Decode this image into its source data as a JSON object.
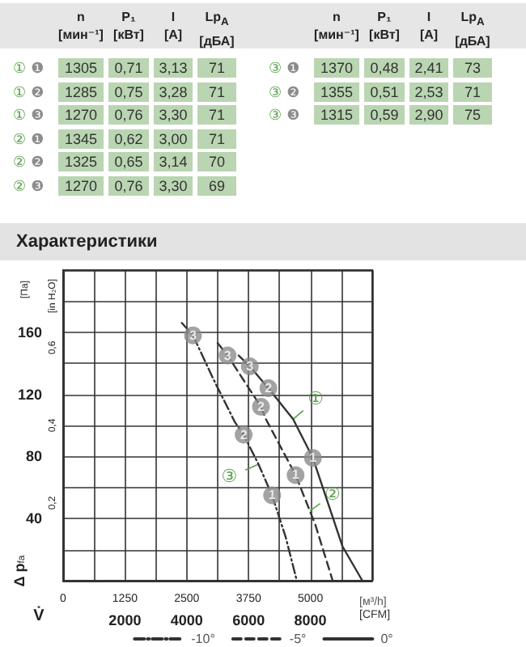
{
  "chart_data": [
    {
      "type": "other",
      "categories": [
        "n\n[мин⁻¹]",
        "P₁\n[кВт]",
        "I\n[A]",
        "Lp$_{A}$\n[дБА]"
      ],
      "color": "#b9d5b1",
      "series": [
        {
          "name": "① ❶",
          "values": [
            1305,
            0.71,
            3.13,
            71
          ],
          "value_labels": [
            "1305",
            "0,71",
            "3,13",
            "71"
          ]
        },
        {
          "name": "① ❷",
          "values": [
            1285,
            0.75,
            3.28,
            71
          ],
          "value_labels": [
            "1285",
            "0,75",
            "3,28",
            "71"
          ]
        },
        {
          "name": "① ❸",
          "values": [
            1270,
            0.76,
            3.3,
            71
          ],
          "value_labels": [
            "1270",
            "0,76",
            "3,30",
            "71"
          ]
        },
        {
          "name": "② ❶",
          "values": [
            1345,
            0.62,
            3.0,
            71
          ],
          "value_labels": [
            "1345",
            "0,62",
            "3,00",
            "71"
          ]
        },
        {
          "name": "② ❷",
          "values": [
            1325,
            0.65,
            3.14,
            70
          ],
          "value_labels": [
            "1325",
            "0,65",
            "3,14",
            "70"
          ]
        },
        {
          "name": "② ❸",
          "values": [
            1270,
            0.76,
            3.3,
            69
          ],
          "value_labels": [
            "1270",
            "0,76",
            "3,30",
            "69"
          ]
        },
        {
          "name": "③ ❶",
          "values": [
            1370,
            0.48,
            2.41,
            73
          ],
          "value_labels": [
            "1370",
            "0,48",
            "2,41",
            "73"
          ]
        },
        {
          "name": "③ ❷",
          "values": [
            1355,
            0.51,
            2.53,
            71
          ],
          "value_labels": [
            "1355",
            "0,51",
            "2,53",
            "71"
          ]
        },
        {
          "name": "③ ❸",
          "values": [
            1315,
            0.59,
            2.9,
            75
          ],
          "value_labels": [
            "1315",
            "0,59",
            "2,90",
            "75"
          ]
        }
      ]
    },
    {
      "type": "line",
      "title": "Характеристики",
      "ylabel": "[Па]",
      "y2label": "[in H₂O]",
      "xlabel": "[CFM]",
      "x2label": "[м³/h]",
      "xlim": [
        0,
        6250
      ],
      "xticks": [
        0,
        {
          "value": 625,
          "label": null
        },
        1250,
        {
          "value": 1875,
          "label": null
        },
        2500,
        {
          "value": 3125,
          "label": null
        },
        3750,
        {
          "value": 4375,
          "label": null
        },
        5000,
        {
          "value": 5625,
          "label": null
        },
        {
          "value": 6250,
          "label": null
        }
      ],
      "x2lim": [
        0,
        10000
      ],
      "x2ticks": [
        2000,
        4000,
        6000,
        8000
      ],
      "ylim": [
        0,
        200
      ],
      "yticks": [
        {
          "value": 0,
          "label": null
        },
        {
          "value": 20,
          "label": null
        },
        40,
        {
          "value": 60,
          "label": null
        },
        80,
        {
          "value": 100,
          "label": null
        },
        120,
        {
          "value": 140,
          "label": null
        },
        160,
        {
          "value": 180,
          "label": null
        },
        {
          "value": 200,
          "label": null
        }
      ],
      "y2lim": [
        0,
        0.8
      ],
      "y2ticks": [
        {
          "value": 0.2,
          "label": "0,2"
        },
        {
          "value": 0.4,
          "label": "0,4"
        },
        {
          "value": 0.6,
          "label": "0,6"
        }
      ],
      "grid": true,
      "legend": "bottom",
      "marker": "none",
      "series": [
        {
          "name": "-10°",
          "color": "#333333",
          "line_style": "dashdot",
          "x": [
            2400,
            2625,
            3050,
            3475,
            3650,
            3950,
            4225,
            4500,
            4725
          ],
          "values": [
            166,
            158,
            129,
            102,
            94,
            75,
            55,
            28,
            0
          ]
        },
        {
          "name": "-5°",
          "color": "#333333",
          "line_style": "dashed",
          "x": [
            3125,
            3325,
            4000,
            4100,
            4700,
            5100,
            5450
          ],
          "values": [
            153,
            145,
            112,
            104,
            68,
            36,
            0
          ]
        },
        {
          "name": "0°",
          "color": "#333333",
          "line_style": "solid",
          "x": [
            3550,
            3775,
            4150,
            4650,
            5050,
            5650,
            6050
          ],
          "values": [
            145,
            138,
            124,
            104,
            79,
            22,
            0
          ]
        },
        {
          "name": "3",
          "type": "scatter",
          "marker": "circle",
          "color": "#8c8c8c",
          "x": [
            2625,
            3325,
            3775
          ],
          "values": [
            158,
            145,
            138
          ]
        },
        {
          "name": "2",
          "type": "scatter",
          "marker": "circle",
          "color": "#8c8c8c",
          "x": [
            3650,
            4000,
            4150
          ],
          "values": [
            94,
            112,
            124
          ]
        },
        {
          "name": "1",
          "type": "scatter",
          "marker": "circle",
          "color": "#8c8c8c",
          "x": [
            4225,
            4700,
            5050
          ],
          "values": [
            55,
            68,
            79
          ]
        }
      ],
      "annotations": [
        "Δ p$_{fa}$",
        "V̇",
        {
          "text": "①",
          "x": 4650,
          "y": 104
        },
        {
          "text": "②",
          "x": 4990,
          "y": 45
        },
        {
          "text": "③",
          "x": 3950,
          "y": 75
        }
      ]
    }
  ]
}
